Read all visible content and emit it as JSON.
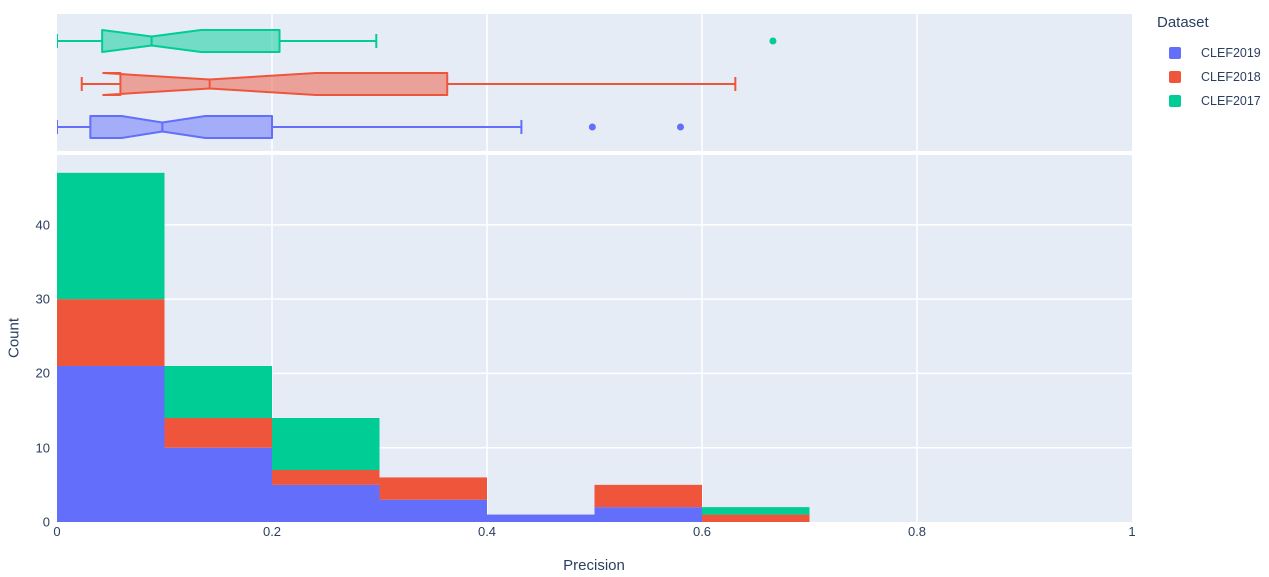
{
  "legend": {
    "title": "Dataset",
    "items": [
      {
        "label": "CLEF2019",
        "color": "#636EFA"
      },
      {
        "label": "CLEF2018",
        "color": "#EF553B"
      },
      {
        "label": "CLEF2017",
        "color": "#00CC96"
      }
    ]
  },
  "axes": {
    "x": {
      "title": "Precision",
      "ticks": [
        "0",
        "0.2",
        "0.4",
        "0.6",
        "0.8",
        "1"
      ],
      "tick_values": [
        0,
        0.2,
        0.4,
        0.6,
        0.8,
        1
      ]
    },
    "y": {
      "title": "Count",
      "ticks": [
        "0",
        "10",
        "20",
        "30",
        "40"
      ],
      "tick_values": [
        0,
        10,
        20,
        30,
        40
      ]
    }
  },
  "colors": {
    "panel_background": "#E5ECF6",
    "gridline": "#FFFFFF",
    "text": "#2A3F5F",
    "clef2019": "#636EFA",
    "clef2018": "#EF553B",
    "clef2017": "#00CC96"
  },
  "chart_data": [
    {
      "type": "box",
      "orientation": "horizontal",
      "title": "",
      "xlabel": "Precision",
      "xlim": [
        0,
        1
      ],
      "notched": true,
      "legend_position": "top-right",
      "rows_top_to_bottom": [
        "CLEF2017",
        "CLEF2018",
        "CLEF2019"
      ],
      "series": [
        {
          "name": "CLEF2017",
          "color": "#00CC96",
          "min": 0.0,
          "q1": 0.042,
          "median": 0.088,
          "q3": 0.207,
          "max": 0.297,
          "notch_lo": 0.042,
          "notch_hi": 0.134,
          "outliers": [
            0.666
          ]
        },
        {
          "name": "CLEF2018",
          "color": "#EF553B",
          "min": 0.023,
          "q1": 0.059,
          "median": 0.142,
          "q3": 0.363,
          "max": 0.631,
          "notch_lo": 0.043,
          "notch_hi": 0.241,
          "outliers": []
        },
        {
          "name": "CLEF2019",
          "color": "#636EFA",
          "min": 0.0,
          "q1": 0.031,
          "median": 0.098,
          "q3": 0.2,
          "max": 0.432,
          "notch_lo": 0.06,
          "notch_hi": 0.138,
          "outliers": [
            0.498,
            0.58
          ]
        }
      ]
    },
    {
      "type": "bar",
      "subtype": "stacked-histogram",
      "title": "",
      "xlabel": "Precision",
      "ylabel": "Count",
      "xlim": [
        0,
        1
      ],
      "ylim": [
        0,
        49.4
      ],
      "grid": true,
      "bin_edges": [
        0,
        0.1,
        0.2,
        0.3,
        0.4,
        0.5,
        0.6,
        0.7
      ],
      "categories": [
        "0-0.1",
        "0.1-0.2",
        "0.2-0.3",
        "0.3-0.4",
        "0.4-0.5",
        "0.5-0.6",
        "0.6-0.7"
      ],
      "stack_order_bottom_to_top": [
        "CLEF2019",
        "CLEF2018",
        "CLEF2017"
      ],
      "series": [
        {
          "name": "CLEF2019",
          "color": "#636EFA",
          "values": [
            21,
            10,
            5,
            3,
            1,
            2,
            0
          ]
        },
        {
          "name": "CLEF2018",
          "color": "#EF553B",
          "values": [
            9,
            4,
            2,
            3,
            0,
            3,
            1
          ]
        },
        {
          "name": "CLEF2017",
          "color": "#00CC96",
          "values": [
            17,
            7,
            7,
            0,
            0,
            0,
            1
          ]
        }
      ]
    }
  ]
}
